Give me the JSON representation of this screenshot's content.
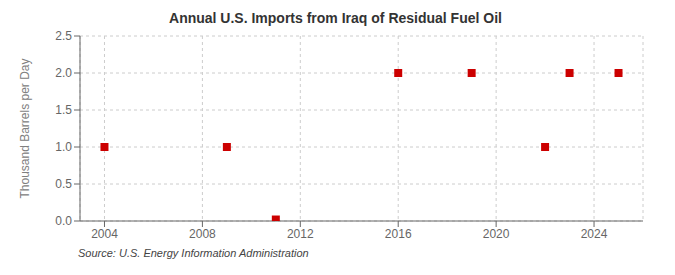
{
  "chart_data": {
    "type": "scatter",
    "title": "Annual U.S. Imports from Iraq of Residual Fuel Oil",
    "ylabel": "Thousand Barrels per Day",
    "annotations": [
      "Source: U.S. Energy Information Administration"
    ],
    "x": [
      2004,
      2009,
      2011,
      2016,
      2019,
      2022,
      2023,
      2025
    ],
    "values": [
      1.0,
      1.0,
      0.02,
      2.0,
      2.0,
      1.0,
      2.0,
      2.0
    ],
    "color": "#cc0000",
    "marker": "square",
    "xlim": [
      2003.0,
      2026.0
    ],
    "ylim": [
      0.0,
      2.5
    ],
    "xticks": [
      2004,
      2008,
      2012,
      2016,
      2020,
      2024
    ],
    "yticks": [
      {
        "value": 0.0,
        "label": "0.0"
      },
      0.5,
      {
        "value": 1.0,
        "label": "1.0"
      },
      1.5,
      {
        "value": 2.0,
        "label": "2.0"
      },
      2.5
    ],
    "grid": true
  }
}
